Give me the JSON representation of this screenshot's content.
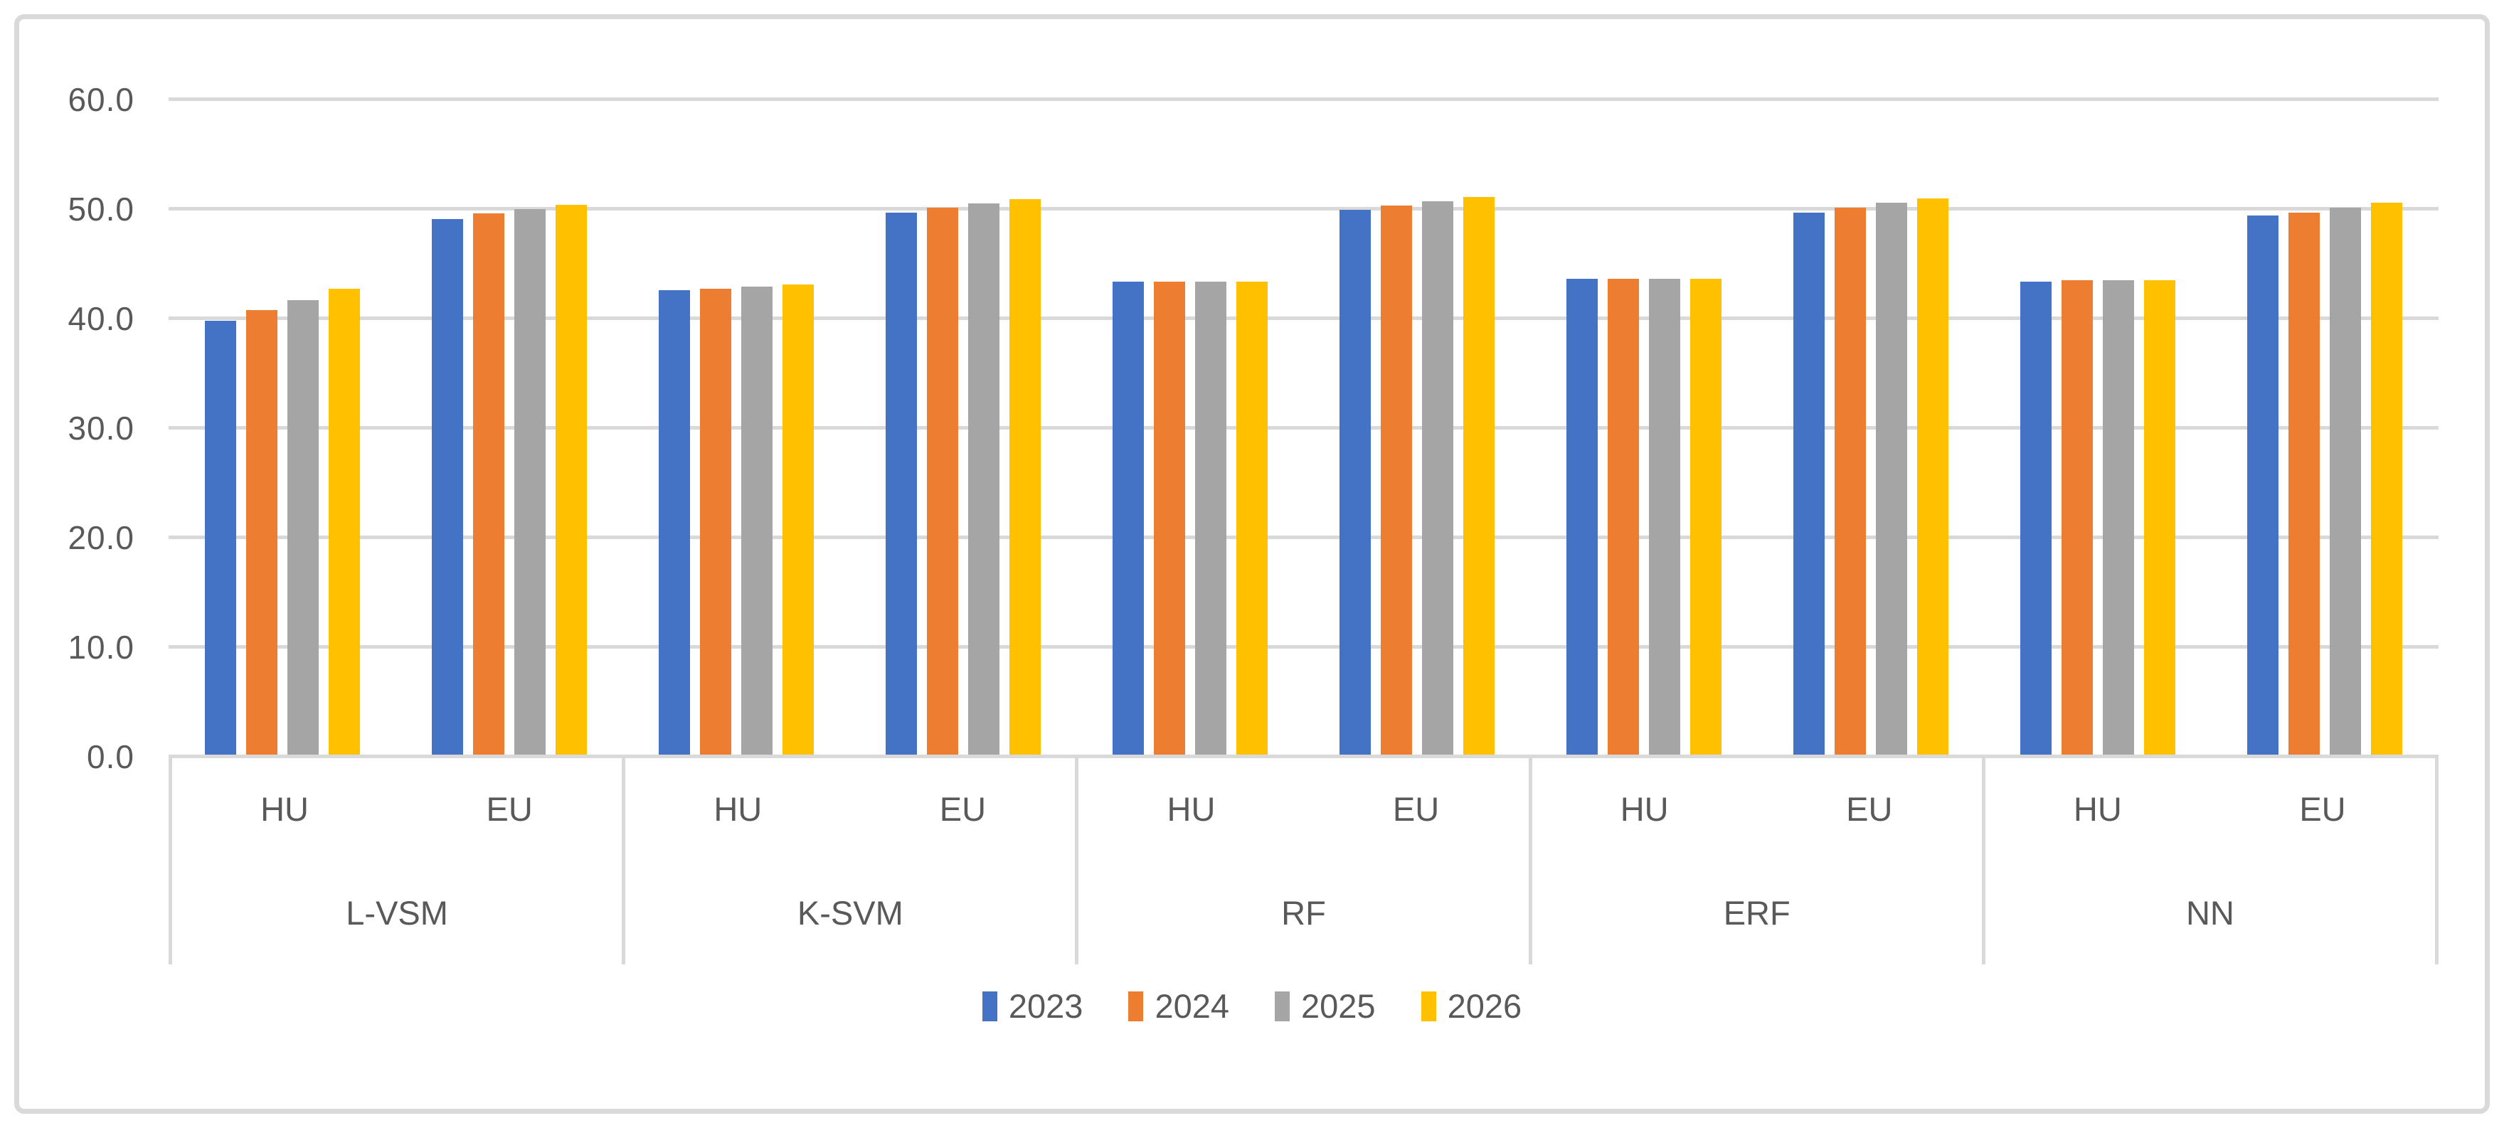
{
  "colors": {
    "grid": "#D9D9D9",
    "axis_text": "#595959",
    "chart_border": "#D9D9D9",
    "background": "#FFFFFF"
  },
  "chart_data": {
    "type": "bar",
    "title": "",
    "xlabel": "",
    "ylabel": "",
    "ylim": [
      0,
      60
    ],
    "grid": true,
    "legend_position": "bottom-center",
    "y_ticks": [
      "0.0",
      "10.0",
      "20.0",
      "30.0",
      "40.0",
      "50.0",
      "60.0"
    ],
    "y_tick_values": [
      0,
      10,
      20,
      30,
      40,
      50,
      60
    ],
    "categories": [
      "L-VSM",
      "K-SVM",
      "RF",
      "ERF",
      "NN"
    ],
    "sub_categories": [
      "HU",
      "EU"
    ],
    "group_order_note": "values arrays run L-VSM HU, L-VSM EU, K-SVM HU, K-SVM EU, RF HU, RF EU, ERF HU, ERF EU, NN HU, NN EU",
    "series": [
      {
        "name": "2023",
        "color": "#4472C4",
        "values": [
          40.0,
          49.3,
          42.8,
          49.9,
          43.6,
          50.1,
          43.8,
          49.9,
          43.6,
          49.6
        ]
      },
      {
        "name": "2024",
        "color": "#ED7D31",
        "values": [
          41.0,
          49.8,
          42.9,
          50.3,
          43.6,
          50.5,
          43.8,
          50.3,
          43.7,
          49.9
        ]
      },
      {
        "name": "2025",
        "color": "#A5A5A5",
        "values": [
          41.9,
          50.2,
          43.1,
          50.7,
          43.6,
          50.9,
          43.8,
          50.8,
          43.7,
          50.3
        ]
      },
      {
        "name": "2026",
        "color": "#FFC000",
        "values": [
          42.9,
          50.6,
          43.3,
          51.1,
          43.6,
          51.3,
          43.8,
          51.2,
          43.7,
          50.8
        ]
      }
    ]
  }
}
